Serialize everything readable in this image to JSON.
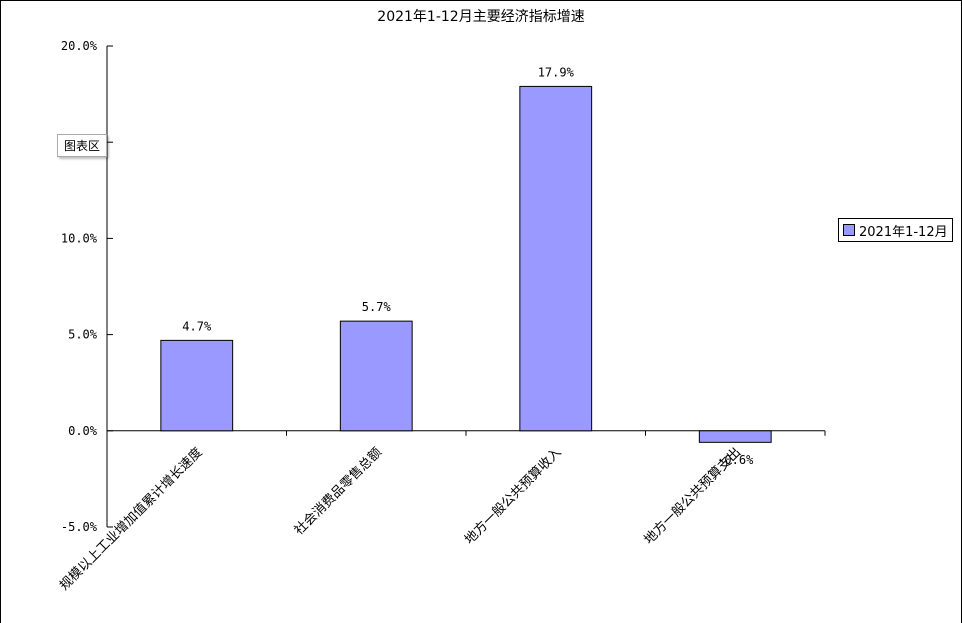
{
  "chart_data": {
    "type": "bar",
    "title": "2021年1-12月主要经济指标增速",
    "categories": [
      "规模以上工业增加值累计增长速度",
      "社会消费品零售总额",
      "地方一般公共预算收入",
      "地方一般公共预算支出"
    ],
    "series": [
      {
        "name": "2021年1-12月",
        "values": [
          4.7,
          5.7,
          17.9,
          -0.6
        ],
        "labels": [
          "4.7%",
          "5.7%",
          "17.9%",
          "-0.6%"
        ],
        "color": "#9999ff"
      }
    ],
    "ylim": [
      -5,
      20
    ],
    "yticks": [
      -5,
      0,
      5,
      10,
      15,
      20
    ],
    "ytick_labels": [
      "-5.0%",
      "0.0%",
      "5.0%",
      "10.0%",
      "",
      "20.0%"
    ],
    "xlabel": "",
    "ylabel": "",
    "grid": false,
    "legend_position": "right"
  },
  "tooltip": {
    "text": "图表区"
  }
}
